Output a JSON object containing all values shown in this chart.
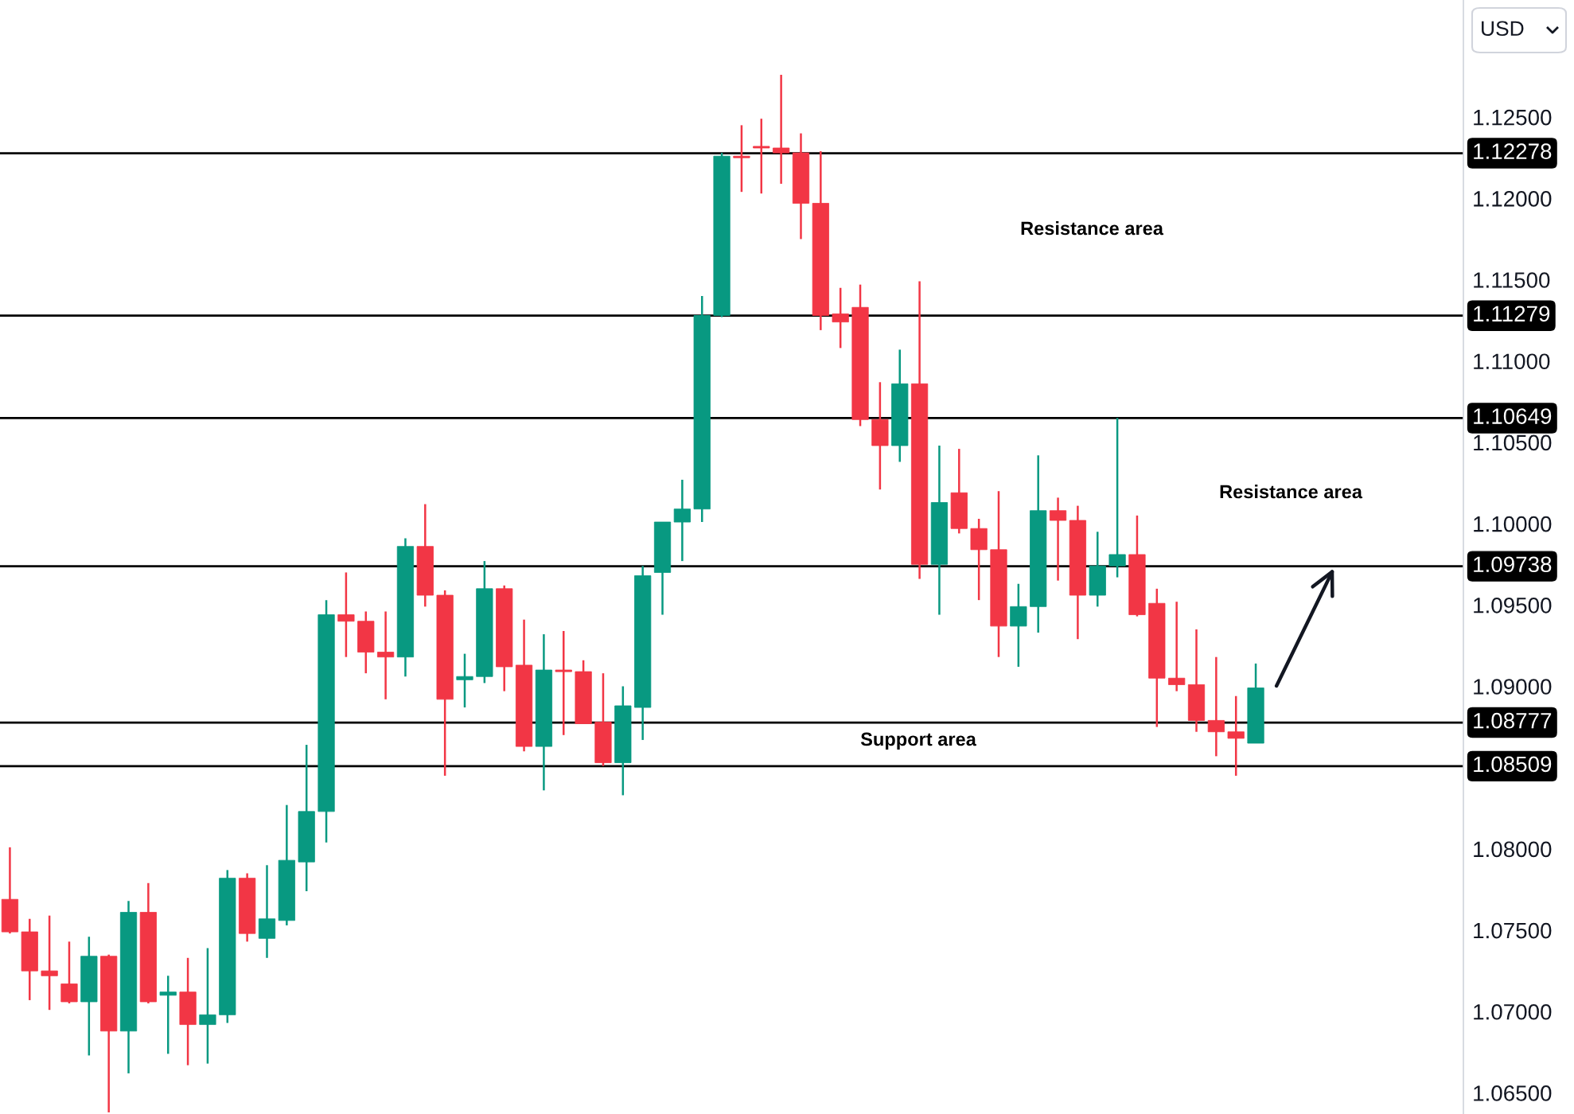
{
  "chart_data": {
    "type": "candlestick",
    "ylabel": "USD",
    "categories": [
      null,
      null,
      null,
      null,
      null,
      null,
      null,
      null,
      null,
      null,
      null,
      null,
      null,
      null,
      null,
      null,
      null,
      null,
      null,
      null,
      null,
      null,
      null,
      null,
      null,
      null,
      null,
      null,
      null,
      null,
      null,
      null,
      null,
      null,
      null,
      null,
      null,
      null,
      null,
      null,
      null,
      null,
      null,
      null,
      null,
      null,
      null,
      null,
      null,
      null,
      null,
      null,
      null,
      null,
      null,
      null,
      null,
      null,
      null,
      null,
      null,
      null,
      null,
      null,
      null,
      null,
      null,
      null,
      null,
      null,
      null,
      null,
      null,
      null
    ],
    "ohlc": [
      [
        1.0769,
        1.0801,
        1.0748,
        1.0749
      ],
      [
        1.0749,
        1.0757,
        1.0707,
        1.0725
      ],
      [
        1.0725,
        1.0759,
        1.0701,
        1.0722
      ],
      [
        1.0717,
        1.0743,
        1.0705,
        1.0706
      ],
      [
        1.0706,
        1.0746,
        1.0673,
        1.0734
      ],
      [
        1.0734,
        1.0735,
        1.0638,
        1.0688
      ],
      [
        1.0688,
        1.0768,
        1.0662,
        1.0761
      ],
      [
        1.0761,
        1.0779,
        1.0705,
        1.0706
      ],
      [
        1.071,
        1.0722,
        1.0674,
        1.0712
      ],
      [
        1.0712,
        1.0733,
        1.0667,
        1.0692
      ],
      [
        1.0692,
        1.0739,
        1.0668,
        1.0698
      ],
      [
        1.0698,
        1.0787,
        1.0693,
        1.0782
      ],
      [
        1.0782,
        1.0785,
        1.0743,
        1.0748
      ],
      [
        1.0745,
        1.079,
        1.0733,
        1.0757
      ],
      [
        1.0756,
        1.0827,
        1.0753,
        1.0793
      ],
      [
        1.0792,
        1.0864,
        1.0774,
        1.0823
      ],
      [
        1.0823,
        1.0953,
        1.0804,
        1.0944
      ],
      [
        1.0944,
        1.097,
        1.0918,
        1.094
      ],
      [
        1.094,
        1.0946,
        1.0908,
        1.0921
      ],
      [
        1.0921,
        1.0946,
        1.0892,
        1.0918
      ],
      [
        1.0918,
        1.0991,
        1.0906,
        1.0986
      ],
      [
        1.0986,
        1.1012,
        1.0949,
        1.0956
      ],
      [
        1.0956,
        1.0959,
        1.0845,
        1.0892
      ],
      [
        1.0904,
        1.092,
        1.0887,
        1.0906
      ],
      [
        1.0906,
        1.0977,
        1.0902,
        1.096
      ],
      [
        1.096,
        1.0962,
        1.0897,
        1.0912
      ],
      [
        1.0913,
        1.0941,
        1.086,
        1.0863
      ],
      [
        1.0863,
        1.0932,
        1.0836,
        1.091
      ],
      [
        1.091,
        1.0934,
        1.087,
        1.0909
      ],
      [
        1.0909,
        1.0916,
        1.0877,
        1.0877
      ],
      [
        1.0878,
        1.0908,
        1.0851,
        1.0853
      ],
      [
        1.0853,
        1.09,
        1.0833,
        1.0888
      ],
      [
        1.0887,
        1.0974,
        1.0867,
        1.0968
      ],
      [
        1.097,
        1.1001,
        1.0944,
        1.1001
      ],
      [
        1.1001,
        1.1027,
        1.0977,
        1.1009
      ],
      [
        1.1009,
        1.114,
        1.1001,
        1.1128
      ],
      [
        1.1128,
        1.1228,
        1.1127,
        1.1226
      ],
      [
        1.1226,
        1.1245,
        1.1204,
        1.1225
      ],
      [
        1.1232,
        1.1249,
        1.1203,
        1.1231
      ],
      [
        1.1231,
        1.1276,
        1.1209,
        1.1228
      ],
      [
        1.1228,
        1.124,
        1.1175,
        1.1197
      ],
      [
        1.1197,
        1.1229,
        1.1119,
        1.1128
      ],
      [
        1.1129,
        1.1145,
        1.1108,
        1.1124
      ],
      [
        1.1133,
        1.1147,
        1.106,
        1.1064
      ],
      [
        1.1064,
        1.1087,
        1.1021,
        1.1048
      ],
      [
        1.1048,
        1.1107,
        1.1038,
        1.1086
      ],
      [
        1.1086,
        1.1149,
        1.0966,
        1.0975
      ],
      [
        1.0975,
        1.1048,
        1.0944,
        1.1013
      ],
      [
        1.1019,
        1.1046,
        1.0994,
        1.0997
      ],
      [
        1.0997,
        1.1003,
        1.0953,
        1.0984
      ],
      [
        1.0984,
        1.102,
        1.0918,
        1.0937
      ],
      [
        1.0937,
        1.0963,
        1.0912,
        1.0949
      ],
      [
        1.0949,
        1.1042,
        1.0933,
        1.1008
      ],
      [
        1.1008,
        1.1016,
        1.0965,
        1.1002
      ],
      [
        1.1002,
        1.1011,
        1.0929,
        1.0956
      ],
      [
        1.0956,
        1.0995,
        1.0949,
        1.0974
      ],
      [
        1.0974,
        1.1065,
        1.0967,
        1.0981
      ],
      [
        1.0981,
        1.1005,
        1.0943,
        1.0944
      ],
      [
        1.0951,
        1.096,
        1.0875,
        1.0905
      ],
      [
        1.0905,
        1.0952,
        1.0897,
        1.0901
      ],
      [
        1.0901,
        1.0935,
        1.0872,
        1.0879
      ],
      [
        1.0879,
        1.0918,
        1.0857,
        1.0872
      ],
      [
        1.0872,
        1.0894,
        1.0845,
        1.0868
      ],
      [
        1.0865,
        1.0914,
        1.0865,
        1.0899
      ],
      null,
      null,
      null,
      null,
      null,
      null,
      null,
      null,
      null,
      null
    ],
    "colors": [
      "#f23645",
      "#f23645",
      "#f23645",
      "#f23645",
      "#089981",
      "#f23645",
      "#089981",
      "#f23645",
      "#089981",
      "#f23645",
      "#089981",
      "#089981",
      "#f23645",
      "#089981",
      "#089981",
      "#089981",
      "#089981",
      "#f23645",
      "#f23645",
      "#f23645",
      "#089981",
      "#f23645",
      "#f23645",
      "#089981",
      "#089981",
      "#f23645",
      "#f23645",
      "#089981",
      "#f23645",
      "#f23645",
      "#f23645",
      "#089981",
      "#089981",
      "#089981",
      "#089981",
      "#089981",
      "#089981",
      "#f23645",
      "#f23645",
      "#f23645",
      "#f23645",
      "#f23645",
      "#f23645",
      "#f23645",
      "#f23645",
      "#089981",
      "#f23645",
      "#089981",
      "#f23645",
      "#f23645",
      "#f23645",
      "#089981",
      "#089981",
      "#f23645",
      "#f23645",
      "#089981",
      "#089981",
      "#f23645",
      "#f23645",
      "#f23645",
      "#f23645",
      "#f23645",
      "#f23645",
      "#089981",
      null,
      null,
      null,
      null,
      null,
      null,
      null,
      null,
      null,
      null
    ],
    "ylim": [
      1.0637,
      1.1322
    ],
    "yticks": [
      {
        "value": 1.065,
        "label": "1.06500"
      },
      {
        "value": 1.07,
        "label": "1.07000"
      },
      {
        "value": 1.075,
        "label": "1.07500"
      },
      {
        "value": 1.08,
        "label": "1.08000"
      },
      {
        "value": 1.09,
        "label": "1.09000"
      },
      {
        "value": 1.095,
        "label": "1.09500"
      },
      {
        "value": 1.1,
        "label": "1.10000"
      },
      {
        "value": 1.105,
        "label": "1.10500"
      },
      {
        "value": 1.11,
        "label": "1.11000"
      },
      {
        "value": 1.115,
        "label": "1.11500"
      },
      {
        "value": 1.12,
        "label": "1.12000"
      },
      {
        "value": 1.125,
        "label": "1.12500"
      }
    ],
    "tick_labels": "y",
    "ref_lines": [
      {
        "axis": "y",
        "value": 1.12278,
        "label": "1.12278",
        "color": "#000000",
        "line_style": "solid"
      },
      {
        "axis": "y",
        "value": 1.11279,
        "label": "1.11279",
        "color": "#000000",
        "line_style": "solid"
      },
      {
        "axis": "y",
        "value": 1.10649,
        "label": "1.10649",
        "color": "#000000",
        "line_style": "solid"
      },
      {
        "axis": "y",
        "value": 1.09738,
        "label": "1.09738",
        "color": "#000000",
        "line_style": "solid"
      },
      {
        "axis": "y",
        "value": 1.08777,
        "label": "1.08777",
        "color": "#000000",
        "line_style": "solid"
      },
      {
        "axis": "y",
        "value": 1.08509,
        "label": "1.08509",
        "color": "#000000",
        "line_style": "solid"
      }
    ],
    "annotations": [
      "Resistance area",
      "Resistance area",
      "Support area"
    ]
  }
}
